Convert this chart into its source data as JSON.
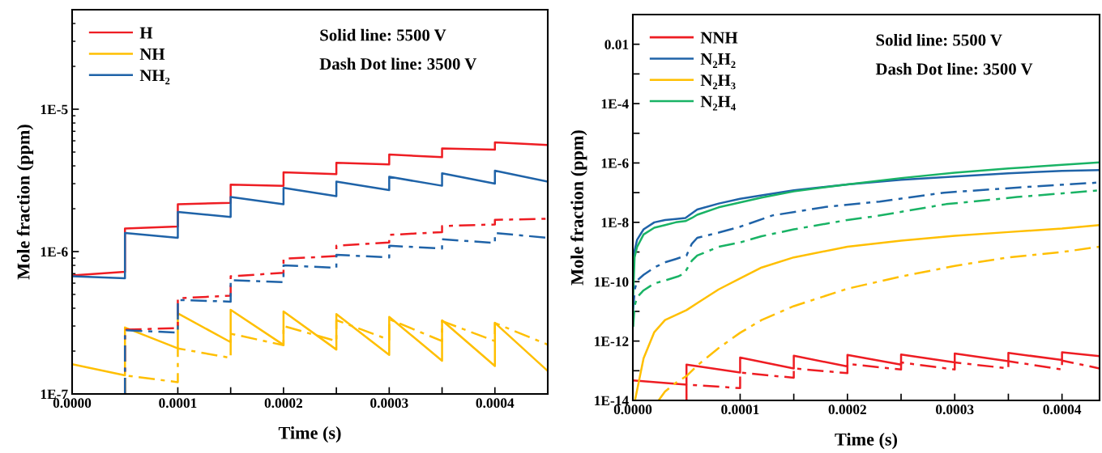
{
  "chart_data": [
    {
      "type": "line",
      "xlabel": "Time (s)",
      "ylabel": "Mole fraction (ppm)",
      "log": "y",
      "legend": "top left",
      "grid": false,
      "xlim": [
        0,
        0.00045
      ],
      "ylim": [
        1e-07,
        5e-05
      ],
      "xticks": [
        {
          "value": 0,
          "label": "0.0000"
        },
        {
          "value": 5e-05,
          "label": null
        },
        {
          "value": 0.0001,
          "label": "0.0001"
        },
        {
          "value": 0.00015,
          "label": null
        },
        {
          "value": 0.0002,
          "label": "0.0002"
        },
        {
          "value": 0.00025,
          "label": null
        },
        {
          "value": 0.0003,
          "label": "0.0003"
        },
        {
          "value": 0.00035,
          "label": null
        },
        {
          "value": 0.0004,
          "label": "0.0004"
        }
      ],
      "yticks": [
        {
          "value": 1e-07,
          "label": "1E-7"
        },
        {
          "value": 1e-06,
          "label": "1E-6"
        },
        {
          "value": 1e-05,
          "label": "1E-5"
        }
      ],
      "annotations": [
        "Solid line: 5500 V",
        "Dash Dot line: 3500 V"
      ],
      "series": [
        {
          "name": "H",
          "color": "#ee1d23",
          "line_style": "solid",
          "x": [
            0,
            5e-05,
            5e-05,
            0.0001,
            0.0001,
            0.00015,
            0.00015,
            0.0002,
            0.0002,
            0.00025,
            0.00025,
            0.0003,
            0.0003,
            0.00035,
            0.00035,
            0.0004,
            0.0004,
            0.00045
          ],
          "values": [
            6.8e-07,
            7.2e-07,
            1.45e-06,
            1.5e-06,
            2.15e-06,
            2.2e-06,
            2.95e-06,
            2.9e-06,
            3.6e-06,
            3.5e-06,
            4.2e-06,
            4.1e-06,
            4.8e-06,
            4.6e-06,
            5.3e-06,
            5.2e-06,
            5.85e-06,
            5.6e-06
          ]
        },
        {
          "name": "NH",
          "color": "#ffbf00",
          "line_style": "solid",
          "x": [
            0,
            5e-05,
            5e-05,
            0.0001,
            0.0001,
            0.00015,
            0.00015,
            0.0002,
            0.0002,
            0.00025,
            0.00025,
            0.0003,
            0.0003,
            0.00035,
            0.00035,
            0.0004,
            0.0004,
            0.00045
          ],
          "values": [
            1.62e-07,
            1.35e-07,
            2.93e-07,
            2.09e-07,
            3.68e-07,
            2.31e-07,
            3.9e-07,
            2.21e-07,
            3.8e-07,
            2.05e-07,
            3.64e-07,
            1.88e-07,
            3.48e-07,
            1.71e-07,
            3.29e-07,
            1.57e-07,
            3.16e-07,
            1.45e-07
          ]
        },
        {
          "name": "NH₂",
          "color": "#1f63a8",
          "line_style": "solid",
          "x": [
            0,
            5e-05,
            5e-05,
            0.0001,
            0.0001,
            0.00015,
            0.00015,
            0.0002,
            0.0002,
            0.00025,
            0.00025,
            0.0003,
            0.0003,
            0.00035,
            0.00035,
            0.0004,
            0.0004,
            0.00045
          ],
          "values": [
            6.7e-07,
            6.5e-07,
            1.35e-06,
            1.25e-06,
            1.9e-06,
            1.75e-06,
            2.42e-06,
            2.15e-06,
            2.8e-06,
            2.45e-06,
            3.1e-06,
            2.7e-06,
            3.35e-06,
            2.9e-06,
            3.55e-06,
            3e-06,
            3.7e-06,
            3.1e-06
          ]
        },
        {
          "color": "#ee1d23",
          "line_style": "dashdot",
          "x": [
            5e-05,
            5e-05,
            0.0001,
            0.0001,
            0.00015,
            0.00015,
            0.0002,
            0.0002,
            0.00025,
            0.00025,
            0.0003,
            0.0003,
            0.00035,
            0.00035,
            0.0004,
            0.0004,
            0.00045
          ],
          "values": [
            1e-07,
            2.83e-07,
            2.9e-07,
            4.7e-07,
            4.9e-07,
            6.7e-07,
            7.1e-07,
            8.9e-07,
            9.3e-07,
            1.1e-06,
            1.16e-06,
            1.31e-06,
            1.37e-06,
            1.51e-06,
            1.55e-06,
            1.67e-06,
            1.7e-06
          ]
        },
        {
          "color": "#ffbf00",
          "line_style": "dashdot",
          "x": [
            5e-05,
            5e-05,
            0.0001,
            0.0001,
            0.00015,
            0.00015,
            0.0002,
            0.0002,
            0.00025,
            0.00025,
            0.0003,
            0.0003,
            0.00035,
            0.00035,
            0.0004,
            0.0004,
            0.00045
          ],
          "values": [
            1e-07,
            1.35e-07,
            1.21e-07,
            2.09e-07,
            1.79e-07,
            2.65e-07,
            2.2e-07,
            3e-07,
            2.35e-07,
            3.3e-07,
            2.4e-07,
            3.35e-07,
            2.35e-07,
            3.25e-07,
            2.35e-07,
            3.15e-07,
            2.22e-07
          ]
        },
        {
          "color": "#1f63a8",
          "line_style": "dashdot",
          "x": [
            5e-05,
            5e-05,
            0.0001,
            0.0001,
            0.00015,
            0.00015,
            0.0002,
            0.0002,
            0.00025,
            0.00025,
            0.0003,
            0.0003,
            0.00035,
            0.00035,
            0.0004,
            0.0004,
            0.00045
          ],
          "values": [
            1e-07,
            2.8e-07,
            2.7e-07,
            4.57e-07,
            4.45e-07,
            6.3e-07,
            6.1e-07,
            8e-07,
            7.7e-07,
            9.5e-07,
            9.1e-07,
            1.1e-06,
            1.05e-06,
            1.22e-06,
            1.15e-06,
            1.35e-06,
            1.25e-06
          ]
        }
      ]
    },
    {
      "type": "line",
      "xlabel": "Time (s)",
      "ylabel": "Mole fraction (ppm)",
      "log": "y",
      "legend": "top left",
      "grid": false,
      "xlim": [
        0,
        0.000435
      ],
      "ylim": [
        1e-14,
        0.1
      ],
      "xticks": [
        {
          "value": 0,
          "label": "0.0000"
        },
        {
          "value": 5e-05,
          "label": null
        },
        {
          "value": 0.0001,
          "label": "0.0001"
        },
        {
          "value": 0.00015,
          "label": null
        },
        {
          "value": 0.0002,
          "label": "0.0002"
        },
        {
          "value": 0.00025,
          "label": null
        },
        {
          "value": 0.0003,
          "label": "0.0003"
        },
        {
          "value": 0.00035,
          "label": null
        },
        {
          "value": 0.0004,
          "label": "0.0004"
        }
      ],
      "yticks": [
        {
          "value": 1e-14,
          "label": "1E-14"
        },
        {
          "value": 1e-13,
          "label": null
        },
        {
          "value": 1e-12,
          "label": "1E-12"
        },
        {
          "value": 1e-11,
          "label": null
        },
        {
          "value": 1e-10,
          "label": "1E-10"
        },
        {
          "value": 1e-09,
          "label": null
        },
        {
          "value": 1e-08,
          "label": "1E-8"
        },
        {
          "value": 1e-07,
          "label": null
        },
        {
          "value": 1e-06,
          "label": "1E-6"
        },
        {
          "value": 1e-05,
          "label": null
        },
        {
          "value": 0.0001,
          "label": "1E-4"
        },
        {
          "value": 0.001,
          "label": null
        },
        {
          "value": 0.01,
          "label": "0.01"
        }
      ],
      "annotations": [
        "Solid line: 5500 V",
        "Dash Dot line: 3500 V"
      ],
      "series": [
        {
          "name": "NNH",
          "color": "#ee1d23",
          "line_style": "solid",
          "x": [
            0,
            5e-05,
            5e-05,
            0.0001,
            0.0001,
            0.00015,
            0.00015,
            0.0002,
            0.0002,
            0.00025,
            0.00025,
            0.0003,
            0.0003,
            0.00035,
            0.00035,
            0.0004,
            0.0004,
            0.000435
          ],
          "values": [
            4.7e-14,
            3.4e-14,
            1.6e-13,
            8.7e-14,
            2.8e-13,
            1.2e-13,
            3.2e-13,
            1.4e-13,
            3.4e-13,
            1.6e-13,
            3.5e-13,
            1.9e-13,
            3.8e-13,
            2.1e-13,
            4e-13,
            2.3e-13,
            4.2e-13,
            3.1e-13
          ]
        },
        {
          "name": "N₂H₂",
          "color": "#1f63a8",
          "line_style": "solid",
          "x": [
            0,
            3e-07,
            1.6e-06,
            4e-06,
            1e-05,
            2e-05,
            3e-05,
            4e-05,
            4.9e-05,
            5.5e-05,
            6e-05,
            8e-05,
            0.0001,
            0.00012,
            0.00015,
            0.0002,
            0.00025,
            0.0003,
            0.00035,
            0.0004,
            0.000435
          ],
          "values": [
            3.2e-11,
            2.2e-10,
            1.1e-09,
            2.6e-09,
            5.8e-09,
            1e-08,
            1.2e-08,
            1.3e-08,
            1.4e-08,
            2e-08,
            2.7e-08,
            4.3e-08,
            6.2e-08,
            8.1e-08,
            1.2e-07,
            1.9e-07,
            2.7e-07,
            3.5e-07,
            4.5e-07,
            5.4e-07,
            5.8e-07
          ]
        },
        {
          "name": "N₂H₃",
          "color": "#ffbf00",
          "line_style": "solid",
          "x": [
            2e-06,
            1e-05,
            2e-05,
            3e-05,
            5e-05,
            6e-05,
            8e-05,
            0.0001,
            0.00012,
            0.00015,
            0.0002,
            0.00025,
            0.0003,
            0.00035,
            0.0004,
            0.000435
          ],
          "values": [
            1e-14,
            2.6e-13,
            2e-12,
            5.1e-12,
            1.1e-11,
            1.9e-11,
            5.5e-11,
            1.3e-10,
            3e-10,
            6.6e-10,
            1.5e-09,
            2.4e-09,
            3.5e-09,
            4.7e-09,
            6.2e-09,
            8.1e-09
          ]
        },
        {
          "name": "N₂H₄",
          "color": "#19b365",
          "line_style": "solid",
          "x": [
            0,
            3e-07,
            1.6e-06,
            4e-06,
            1e-05,
            2e-05,
            3e-05,
            4e-05,
            4.9e-05,
            5.5e-05,
            6e-05,
            8e-05,
            0.0001,
            0.00012,
            0.00015,
            0.0002,
            0.00025,
            0.0003,
            0.00035,
            0.0004,
            0.000435
          ],
          "values": [
            3.2e-12,
            3.4e-11,
            6.6e-10,
            1.5e-09,
            3.9e-09,
            6.6e-09,
            8.1e-09,
            1e-08,
            1.1e-08,
            1.4e-08,
            1.8e-08,
            3.2e-08,
            4.7e-08,
            6.8e-08,
            1.1e-07,
            1.9e-07,
            3.1e-07,
            4.7e-07,
            6.5e-07,
            8.7e-07,
            1.05e-06
          ]
        },
        {
          "color": "#ee1d23",
          "line_style": "dashdot",
          "x": [
            5e-05,
            5e-05,
            0.0001,
            0.0001,
            0.00015,
            0.00015,
            0.0002,
            0.0002,
            0.00025,
            0.00025,
            0.0003,
            0.0003,
            0.00035,
            0.00035,
            0.0004,
            0.0004,
            0.000435
          ],
          "values": [
            1e-14,
            3.4e-14,
            2.6e-14,
            8.7e-14,
            5.8e-14,
            1.2e-13,
            8.3e-14,
            1.7e-13,
            1.1e-13,
            1.9e-13,
            1.1e-13,
            1.9e-13,
            1.2e-13,
            2.1e-13,
            1.1e-13,
            2.2e-13,
            1.2e-13
          ]
        },
        {
          "color": "#1f63a8",
          "line_style": "dashdot",
          "x": [
            0,
            2e-06,
            4e-06,
            1e-05,
            2e-05,
            3e-05,
            4e-05,
            5e-05,
            5.5e-05,
            6e-05,
            8e-05,
            0.0001,
            0.00013,
            0.00018,
            0.00023,
            0.00029,
            0.00036,
            0.000435
          ],
          "values": [
            1e-11,
            5.8e-11,
            1.1e-10,
            1.7e-10,
            3e-10,
            4.5e-10,
            5.8e-10,
            7.6e-10,
            1.9e-09,
            3e-09,
            4.5e-09,
            7.1e-09,
            1.7e-08,
            3.3e-08,
            5e-08,
            1e-07,
            1.5e-07,
            2.2e-07
          ]
        },
        {
          "color": "#ffbf00",
          "line_style": "dashdot",
          "x": [
            2.4e-05,
            3e-05,
            4e-05,
            5e-05,
            6e-05,
            8e-05,
            0.0001,
            0.00012,
            0.00015,
            0.0002,
            0.00025,
            0.0003,
            0.00035,
            0.0004,
            0.000435
          ],
          "values": [
            1e-14,
            2e-14,
            3.9e-14,
            6.6e-14,
            1.5e-13,
            5.8e-13,
            1.9e-12,
            5.1e-12,
            1.5e-11,
            5.8e-11,
            1.5e-10,
            3.4e-10,
            6.6e-10,
            1e-09,
            1.5e-09
          ]
        },
        {
          "color": "#19b365",
          "line_style": "dashdot",
          "x": [
            3e-07,
            1.6e-06,
            4e-06,
            1e-05,
            2e-05,
            3e-05,
            4.2e-05,
            4.8e-05,
            5.5e-05,
            6e-05,
            8e-05,
            0.0001,
            0.00012,
            0.00015,
            0.0002,
            0.000226,
            0.000292,
            0.000358,
            0.000435
          ],
          "values": [
            3e-12,
            1.5e-11,
            3e-11,
            5.1e-11,
            8.7e-11,
            1.1e-10,
            1.5e-10,
            1.9e-10,
            5.1e-10,
            7.6e-10,
            1.5e-09,
            2.1e-09,
            3.4e-09,
            5.8e-09,
            1.2e-08,
            1.6e-08,
            4.1e-08,
            7.1e-08,
            1.2e-07
          ]
        }
      ]
    }
  ]
}
